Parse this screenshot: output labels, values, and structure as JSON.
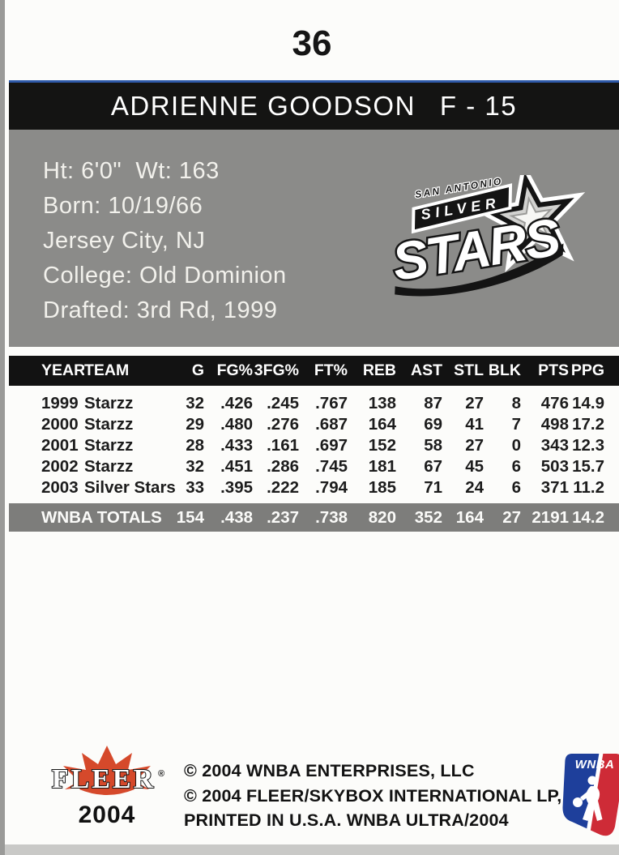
{
  "card": {
    "number": "36",
    "name": "ADRIENNE GOODSON",
    "position": "F - 15",
    "bio_lines": [
      "Ht: 6'0\"  Wt: 163",
      "Born: 10/19/66",
      "Jersey City, NJ",
      "College: Old Dominion",
      "Drafted: 3rd Rd, 1999"
    ],
    "team_logo": {
      "city": "SAN ANTONIO",
      "prefix": "SILVER",
      "name": "STARS"
    },
    "stats": {
      "columns": [
        "YEAR",
        "TEAM",
        "G",
        "FG%",
        "3FG%",
        "FT%",
        "REB",
        "AST",
        "STL",
        "BLK",
        "PTS",
        "PPG"
      ],
      "rows": [
        [
          "1999",
          "Starzz",
          "32",
          ".426",
          ".245",
          ".767",
          "138",
          "87",
          "27",
          "8",
          "476",
          "14.9"
        ],
        [
          "2000",
          "Starzz",
          "29",
          ".480",
          ".276",
          ".687",
          "164",
          "69",
          "41",
          "7",
          "498",
          "17.2"
        ],
        [
          "2001",
          "Starzz",
          "28",
          ".433",
          ".161",
          ".697",
          "152",
          "58",
          "27",
          "0",
          "343",
          "12.3"
        ],
        [
          "2002",
          "Starzz",
          "32",
          ".451",
          ".286",
          ".745",
          "181",
          "67",
          "45",
          "6",
          "503",
          "15.7"
        ],
        [
          "2003",
          "Silver Stars",
          "33",
          ".395",
          ".222",
          ".794",
          "185",
          "71",
          "24",
          "6",
          "371",
          "11.2"
        ]
      ],
      "totals": {
        "label": "WNBA TOTALS",
        "values": [
          "154",
          ".438",
          ".237",
          ".738",
          "820",
          "352",
          "164",
          "27",
          "2191",
          "14.2"
        ]
      }
    },
    "footer": {
      "fleer": {
        "brand": "FLEER",
        "reg": "®",
        "year": "2004"
      },
      "copyright_lines": [
        "© 2004 WNBA ENTERPRISES, LLC",
        "© 2004 FLEER/SKYBOX INTERNATIONAL LP,",
        "PRINTED IN U.S.A. WNBA ULTRA/2004"
      ],
      "wnba": {
        "label": "WNBA"
      }
    }
  },
  "colors": {
    "panel_gray": "#8b8b89",
    "totals_gray": "#7d7d7b",
    "bar_black": "#141413",
    "accent_blue": "#2e59a8",
    "fleer_red": "#d5492b",
    "wnba_blue": "#1e3f9b",
    "wnba_red": "#ce2b37"
  }
}
